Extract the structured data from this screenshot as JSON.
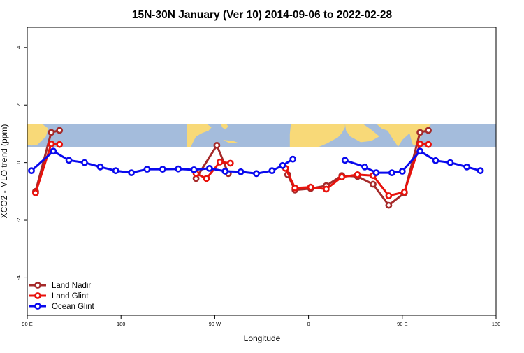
{
  "chart_data": {
    "type": "line",
    "title": "15N-30N January (Ver 10)   2014-09-06 to 2022-02-28",
    "xlabel": "Longitude",
    "ylabel": "XCO2 - MLO trend (ppm)",
    "xlim": [
      90,
      540
    ],
    "ylim": [
      -5.3,
      4.7
    ],
    "x_ticks": [
      {
        "value": 90,
        "label": "90 E"
      },
      {
        "value": 180,
        "label": "180"
      },
      {
        "value": 270,
        "label": "90 W"
      },
      {
        "value": 360,
        "label": "0"
      },
      {
        "value": 450,
        "label": "90 E"
      },
      {
        "value": 540,
        "label": "180"
      }
    ],
    "y_ticks": [
      {
        "value": -4,
        "label": "-4"
      },
      {
        "value": -2,
        "label": "-2"
      },
      {
        "value": 0,
        "label": "0"
      },
      {
        "value": 2,
        "label": "2"
      },
      {
        "value": 4,
        "label": "4"
      }
    ],
    "map_band": {
      "ymin": 0.55,
      "ymax": 1.35,
      "ocean_color": "#a4bcdc",
      "land_color": "#f8d978"
    },
    "legend_position": "bottom-left",
    "series": [
      {
        "name": "Land Nadir",
        "color": "#a52a2a",
        "segments": [
          [
            [
              98,
              -1.0
            ],
            [
              113,
              1.05
            ],
            [
              121,
              1.12
            ]
          ],
          [
            [
              252,
              -0.55
            ],
            [
              272,
              0.6
            ],
            [
              283,
              -0.38
            ]
          ],
          [
            [
              340,
              -0.42
            ],
            [
              347,
              -0.95
            ],
            [
              362,
              -0.9
            ],
            [
              377,
              -0.8
            ],
            [
              392,
              -0.45
            ],
            [
              407,
              -0.48
            ],
            [
              422,
              -0.75
            ],
            [
              437,
              -1.48
            ],
            [
              452,
              -1.05
            ],
            [
              467,
              1.05
            ],
            [
              475,
              1.12
            ]
          ]
        ]
      },
      {
        "name": "Land Glint",
        "color": "#e8120c",
        "segments": [
          [
            [
              98,
              -1.05
            ],
            [
              113,
              0.65
            ],
            [
              121,
              0.63
            ]
          ],
          [
            [
              252,
              -0.38
            ],
            [
              262,
              -0.55
            ],
            [
              275,
              0.02
            ],
            [
              285,
              -0.02
            ]
          ],
          [
            [
              338,
              -0.2
            ],
            [
              347,
              -0.88
            ],
            [
              362,
              -0.85
            ],
            [
              377,
              -0.92
            ],
            [
              392,
              -0.5
            ],
            [
              407,
              -0.42
            ],
            [
              422,
              -0.45
            ],
            [
              437,
              -1.15
            ],
            [
              452,
              -1.02
            ],
            [
              467,
              0.65
            ],
            [
              475,
              0.63
            ]
          ]
        ]
      },
      {
        "name": "Ocean Glint",
        "color": "#0909ee",
        "segments": [
          [
            [
              94,
              -0.28
            ],
            [
              115,
              0.4
            ],
            [
              130,
              0.08
            ],
            [
              145,
              0.0
            ],
            [
              160,
              -0.15
            ],
            [
              175,
              -0.28
            ],
            [
              190,
              -0.35
            ],
            [
              205,
              -0.23
            ],
            [
              220,
              -0.23
            ],
            [
              235,
              -0.22
            ],
            [
              250,
              -0.25
            ],
            [
              265,
              -0.2
            ],
            [
              280,
              -0.3
            ],
            [
              295,
              -0.32
            ],
            [
              310,
              -0.38
            ],
            [
              325,
              -0.28
            ],
            [
              335,
              -0.1
            ],
            [
              345,
              0.12
            ]
          ],
          [
            [
              395,
              0.08
            ],
            [
              414,
              -0.15
            ],
            [
              425,
              -0.35
            ],
            [
              440,
              -0.35
            ],
            [
              450,
              -0.3
            ],
            [
              467,
              0.4
            ],
            [
              482,
              0.07
            ],
            [
              496,
              0.0
            ],
            [
              512,
              -0.15
            ],
            [
              525,
              -0.28
            ]
          ]
        ]
      }
    ]
  }
}
